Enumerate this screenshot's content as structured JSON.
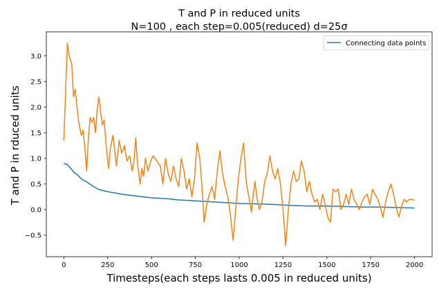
{
  "chart_data": {
    "type": "line",
    "title": "T and P in reduced units",
    "subtitle": "N=100 , each step=0.005(reduced) d=25σ",
    "xlabel": "Timesteps(each steps lasts 0.005 in reduced units)",
    "ylabel": "T and P in rduced units",
    "xlim": [
      -100,
      2100
    ],
    "ylim": [
      -0.92,
      3.47
    ],
    "xticks": [
      0,
      250,
      500,
      750,
      1000,
      1250,
      1500,
      1750,
      2000
    ],
    "yticks": [
      -0.5,
      0.0,
      0.5,
      1.0,
      1.5,
      2.0,
      2.5,
      3.0
    ],
    "ytick_labels": [
      "−0.5",
      "0.0",
      "0.5",
      "1.0",
      "1.5",
      "2.0",
      "2.5",
      "3.0"
    ],
    "grid": false,
    "legend_position": "top-right",
    "series": [
      {
        "name": "Connecting data points",
        "color": "#1f77b4",
        "x": [
          0,
          20,
          40,
          60,
          80,
          100,
          130,
          160,
          200,
          250,
          300,
          350,
          400,
          450,
          500,
          550,
          600,
          650,
          700,
          750,
          800,
          850,
          900,
          950,
          1000,
          1100,
          1200,
          1300,
          1400,
          1500,
          1600,
          1700,
          1800,
          1900,
          2000
        ],
        "values": [
          0.9,
          0.88,
          0.8,
          0.72,
          0.67,
          0.6,
          0.54,
          0.47,
          0.39,
          0.35,
          0.32,
          0.29,
          0.27,
          0.25,
          0.23,
          0.22,
          0.21,
          0.19,
          0.18,
          0.17,
          0.16,
          0.15,
          0.14,
          0.13,
          0.12,
          0.11,
          0.1,
          0.08,
          0.07,
          0.07,
          0.06,
          0.05,
          0.05,
          0.04,
          0.03
        ]
      },
      {
        "name": "",
        "color": "#ff7f0e",
        "x": [
          0,
          10,
          20,
          30,
          45,
          55,
          65,
          75,
          85,
          100,
          110,
          120,
          130,
          140,
          150,
          160,
          170,
          180,
          190,
          200,
          210,
          220,
          230,
          240,
          255,
          265,
          280,
          290,
          300,
          315,
          330,
          345,
          360,
          375,
          390,
          400,
          410,
          420,
          435,
          445,
          455,
          465,
          480,
          495,
          510,
          530,
          550,
          565,
          580,
          595,
          610,
          625,
          640,
          655,
          670,
          685,
          700,
          715,
          730,
          745,
          760,
          775,
          790,
          800,
          815,
          830,
          845,
          860,
          875,
          890,
          905,
          920,
          935,
          950,
          965,
          980,
          995,
          1010,
          1025,
          1040,
          1055,
          1070,
          1080,
          1090,
          1100,
          1115,
          1130,
          1145,
          1160,
          1175,
          1190,
          1205,
          1220,
          1235,
          1250,
          1265,
          1280,
          1295,
          1310,
          1325,
          1340,
          1355,
          1370,
          1385,
          1400,
          1415,
          1430,
          1445,
          1460,
          1475,
          1490,
          1505,
          1520,
          1535,
          1550,
          1565,
          1580,
          1595,
          1610,
          1625,
          1640,
          1655,
          1670,
          1685,
          1700,
          1715,
          1730,
          1745,
          1760,
          1775,
          1790,
          1805,
          1820,
          1835,
          1850,
          1865,
          1880,
          1895,
          1910,
          1925,
          1940,
          1955,
          1970,
          1985,
          2000
        ],
        "values": [
          1.35,
          2.3,
          3.25,
          3.0,
          2.85,
          2.2,
          2.35,
          2.0,
          1.7,
          1.45,
          1.55,
          1.2,
          0.75,
          1.4,
          1.8,
          1.7,
          1.8,
          1.5,
          1.95,
          2.2,
          1.9,
          1.65,
          1.75,
          1.3,
          0.8,
          1.2,
          1.45,
          1.15,
          0.85,
          1.35,
          1.1,
          1.25,
          0.95,
          1.05,
          0.75,
          0.95,
          1.4,
          0.9,
          0.5,
          0.8,
          0.65,
          1.0,
          0.75,
          0.95,
          1.05,
          0.95,
          0.85,
          0.5,
          1.0,
          0.7,
          0.55,
          0.85,
          0.6,
          0.45,
          1.0,
          0.75,
          0.4,
          0.6,
          0.25,
          0.6,
          1.3,
          1.0,
          0.35,
          -0.25,
          0.1,
          0.3,
          0.45,
          0.2,
          0.75,
          1.15,
          0.7,
          0.45,
          0.25,
          -0.1,
          -0.6,
          0.0,
          0.6,
          1.0,
          1.3,
          0.55,
          0.25,
          -0.05,
          0.3,
          0.55,
          0.25,
          0.0,
          0.15,
          0.55,
          0.7,
          1.05,
          0.75,
          0.6,
          0.8,
          0.5,
          0.0,
          -0.7,
          0.0,
          0.5,
          0.75,
          0.55,
          0.6,
          0.95,
          0.75,
          0.35,
          0.55,
          0.3,
          0.15,
          0.2,
          0.0,
          0.3,
          0.1,
          -0.15,
          -0.25,
          0.4,
          0.35,
          0.4,
          0.0,
          0.1,
          0.3,
          0.1,
          0.4,
          0.2,
          0.1,
          0.0,
          0.15,
          0.25,
          0.3,
          0.1,
          0.4,
          0.3,
          0.2,
          0.05,
          -0.15,
          0.15,
          0.35,
          0.5,
          0.3,
          0.05,
          -0.15,
          0.05,
          0.2,
          0.15,
          0.2,
          0.2,
          0.18
        ]
      }
    ]
  }
}
